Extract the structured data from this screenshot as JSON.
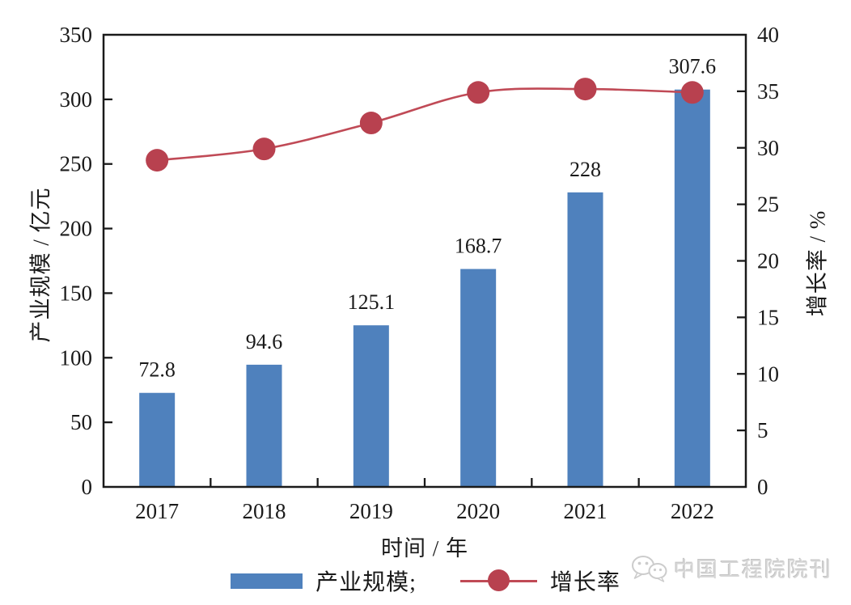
{
  "watermark": {
    "text": "中国工程院院刊",
    "icon": "wechat-icon"
  },
  "colors": {
    "bar": "#4f81bd",
    "line": "#c04a56",
    "marker": "#b8414f",
    "axis": "#1a1a1a",
    "text": "#1a1a1a",
    "watermark": "#d6d6d6"
  },
  "chart_data": {
    "type": "bar",
    "subtype": "bar+line dual axis",
    "categories": [
      "2017",
      "2018",
      "2019",
      "2020",
      "2021",
      "2022"
    ],
    "series": [
      {
        "name": "产业规模",
        "type": "bar",
        "axis": "left",
        "values": [
          72.8,
          94.6,
          125.1,
          168.7,
          228,
          307.6
        ],
        "value_labels": [
          "72.8",
          "94.6",
          "125.1",
          "168.7",
          "228",
          "307.6"
        ],
        "color": "#4f81bd"
      },
      {
        "name": "增长率",
        "type": "line",
        "axis": "right",
        "values": [
          28.9,
          29.9,
          32.2,
          34.9,
          35.2,
          34.9
        ],
        "color": "#c04a56",
        "marker": "circle"
      }
    ],
    "left_axis": {
      "title": "产业规模 / 亿元",
      "min": 0,
      "max": 350,
      "step": 50,
      "ticks": [
        "0",
        "50",
        "100",
        "150",
        "200",
        "250",
        "300",
        "350"
      ]
    },
    "right_axis": {
      "title": "增长率 / %",
      "min": 0,
      "max": 40,
      "step": 5,
      "ticks": [
        "0",
        "5",
        "10",
        "15",
        "20",
        "25",
        "30",
        "35",
        "40"
      ]
    },
    "x_axis": {
      "title": "时间 / 年"
    },
    "grid": false,
    "legend_position": "bottom",
    "legend": [
      {
        "label": "产业规模;",
        "swatch": "bar"
      },
      {
        "label": "增长率",
        "swatch": "line-marker"
      }
    ]
  }
}
